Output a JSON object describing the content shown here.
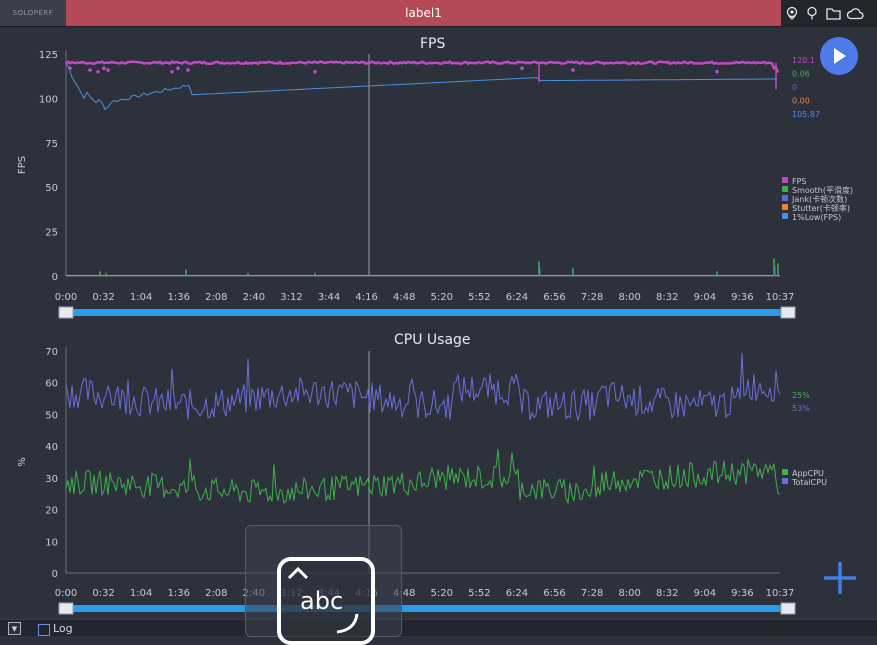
{
  "app": {
    "brand": "SOLOPERF",
    "title": "label1"
  },
  "toolbar": {
    "icons": [
      "location-icon",
      "pin-icon",
      "folder-icon",
      "cloud-icon"
    ]
  },
  "fps_chart": {
    "title": "FPS",
    "ylabel": "FPS",
    "yticks": [
      "0",
      "25",
      "50",
      "75",
      "100",
      "125"
    ],
    "xticks": [
      "0:00",
      "0:32",
      "1:04",
      "1:36",
      "2:08",
      "2:40",
      "3:12",
      "3:44",
      "4:16",
      "4:48",
      "5:20",
      "5:52",
      "6:24",
      "6:56",
      "7:28",
      "8:00",
      "8:32",
      "9:04",
      "9:36",
      "10:37"
    ],
    "values": {
      "fps": "120.1",
      "smooth": "0.06",
      "jank": "0",
      "stutter": "0.00",
      "low": "105.87"
    },
    "legend": [
      "FPS",
      "Smooth(平滑度)",
      "Jank(卡顿次数)",
      "Stutter(卡顿率)",
      "1%Low(FPS)"
    ],
    "colors": {
      "fps": "#c04bc0",
      "smooth": "#3fb04b",
      "jank": "#5a6ad8",
      "stutter": "#e8823a",
      "low": "#4a90e2"
    }
  },
  "cpu_chart": {
    "title": "CPU Usage",
    "ylabel": "%",
    "yticks": [
      "0",
      "10",
      "20",
      "30",
      "40",
      "50",
      "60",
      "70"
    ],
    "xticks": [
      "0:00",
      "0:32",
      "1:04",
      "1:36",
      "2:08",
      "2:40",
      "3:12",
      "3:44",
      "4:16",
      "4:48",
      "5:20",
      "5:52",
      "6:24",
      "6:56",
      "7:28",
      "8:00",
      "8:32",
      "9:04",
      "9:36",
      "10:37"
    ],
    "values": {
      "app": "25%",
      "total": "53%"
    },
    "legend": [
      "AppCPU",
      "TotalCPU"
    ],
    "colors": {
      "app": "#3fb04b",
      "total": "#6a6fd8"
    }
  },
  "bottom": {
    "log_label": "Log",
    "dropdown_icon": "▼"
  },
  "keyboard": {
    "label": "abc",
    "caret": "^"
  }
}
